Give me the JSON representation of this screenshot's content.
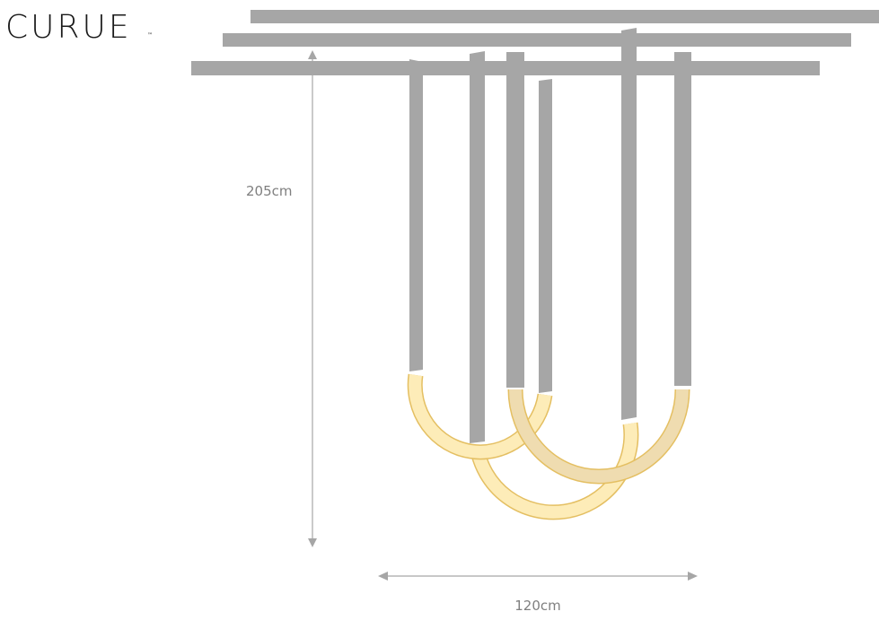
{
  "logo": {
    "text": "CURUE",
    "mark": "™"
  },
  "dimensions": {
    "height": "205cm",
    "width": "120cm"
  }
}
